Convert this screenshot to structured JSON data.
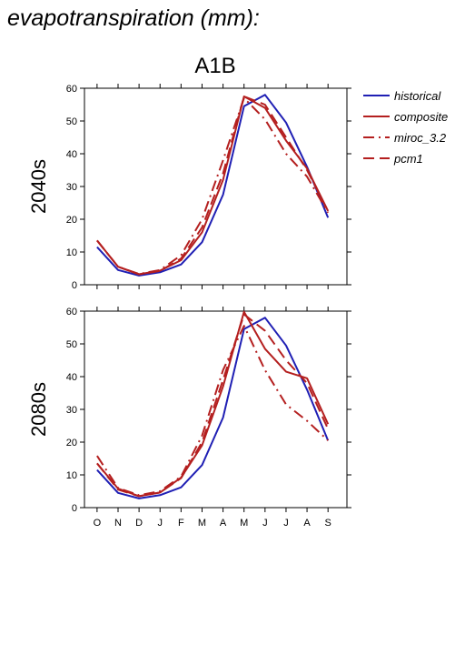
{
  "page": {
    "title": "evapotranspiration (mm):",
    "scenario": "A1B"
  },
  "colors": {
    "historical": "#1f1fb4",
    "models": "#b41f1f",
    "axis": "#000000"
  },
  "chart_data": [
    {
      "type": "line",
      "panel_label": "2040s",
      "categories": [
        "O",
        "N",
        "D",
        "J",
        "F",
        "M",
        "A",
        "M",
        "J",
        "J",
        "A",
        "S"
      ],
      "ylim": [
        0,
        60
      ],
      "yticks": [
        0,
        10,
        20,
        30,
        40,
        50,
        60
      ],
      "grid": false,
      "legend_position": "right",
      "series": [
        {
          "name": "historical",
          "style": "solid",
          "color": "#1f1fb4",
          "values": [
            11.5,
            4.5,
            2.8,
            3.8,
            6.2,
            13,
            27.5,
            54.5,
            58,
            49.5,
            36,
            20.5
          ]
        },
        {
          "name": "composite",
          "style": "solid",
          "color": "#b41f1f",
          "values": [
            13.5,
            5.5,
            3.2,
            4.3,
            7.5,
            16,
            32,
            57.5,
            54,
            44,
            35.5,
            22.5
          ]
        },
        {
          "name": "miroc_3.2",
          "style": "dashdot",
          "color": "#b41f1f",
          "values": [
            13.5,
            5.5,
            3.3,
            4.5,
            9,
            20,
            38,
            57,
            50.5,
            40,
            33,
            22
          ]
        },
        {
          "name": "pcm1",
          "style": "dash",
          "color": "#b41f1f",
          "values": [
            13.5,
            5.5,
            3.2,
            4.2,
            8,
            17.5,
            34,
            57.5,
            55,
            45,
            35,
            22.5
          ]
        }
      ]
    },
    {
      "type": "line",
      "panel_label": "2080s",
      "categories": [
        "O",
        "N",
        "D",
        "J",
        "F",
        "M",
        "A",
        "M",
        "J",
        "J",
        "A",
        "S"
      ],
      "ylim": [
        0,
        60
      ],
      "yticks": [
        0,
        10,
        20,
        30,
        40,
        50,
        60
      ],
      "grid": false,
      "series": [
        {
          "name": "historical",
          "style": "solid",
          "color": "#1f1fb4",
          "values": [
            11.5,
            4.5,
            2.8,
            3.8,
            6.2,
            13,
            27.5,
            54.5,
            58,
            49.5,
            36,
            20.5
          ]
        },
        {
          "name": "composite",
          "style": "solid",
          "color": "#b41f1f",
          "values": [
            13.5,
            5.8,
            3.5,
            4.6,
            9.2,
            19,
            37,
            59.8,
            48.5,
            41.5,
            39.5,
            25.5
          ]
        },
        {
          "name": "miroc_3.2",
          "style": "dashdot",
          "color": "#b41f1f",
          "values": [
            15.8,
            6,
            3.8,
            5,
            9.5,
            22,
            42,
            55.5,
            42,
            31.5,
            26.5,
            20.5
          ]
        },
        {
          "name": "pcm1",
          "style": "dash",
          "color": "#b41f1f",
          "values": [
            13.5,
            5.5,
            3.5,
            4.6,
            9,
            20,
            39,
            59,
            54,
            45,
            38,
            24
          ]
        }
      ]
    }
  ]
}
